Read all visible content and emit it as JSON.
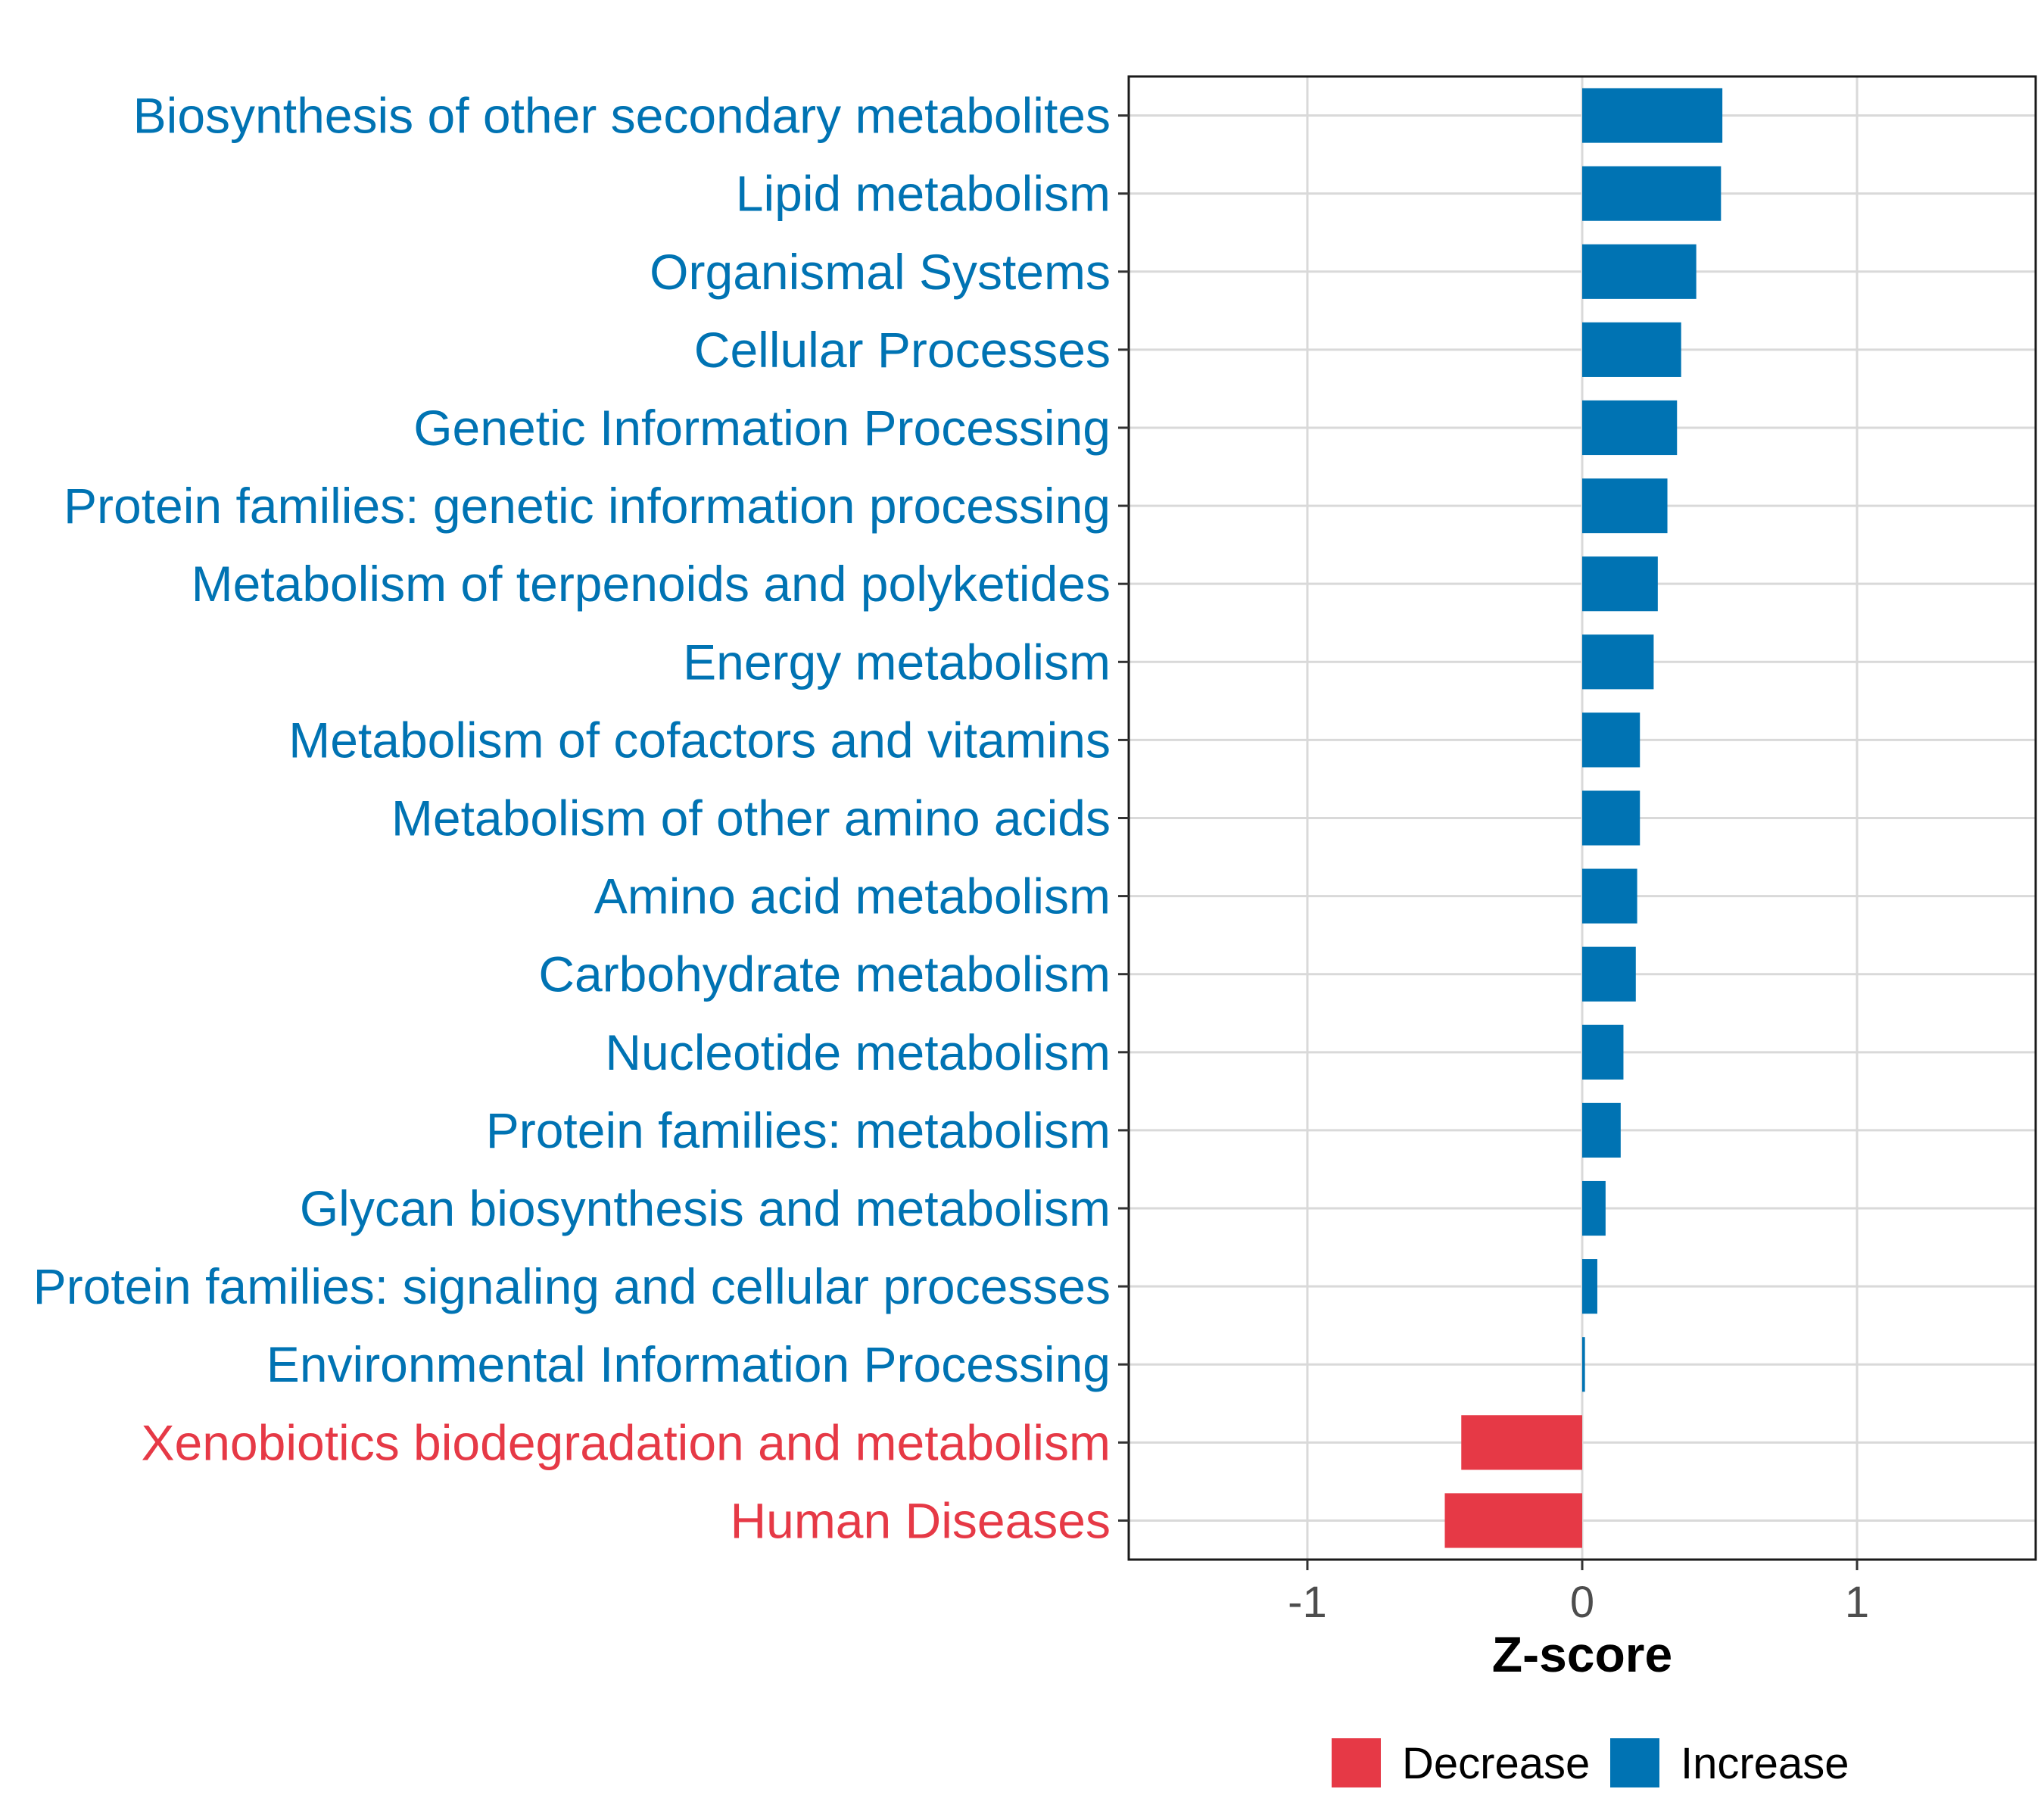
{
  "chart_data": {
    "type": "bar",
    "orientation": "horizontal",
    "title": "",
    "xlabel": "Z-score",
    "ylabel": "",
    "xlim": [
      -1.65,
      1.65
    ],
    "xticks": [
      -1,
      0,
      1
    ],
    "xtick_labels": [
      "-1",
      "0",
      "1"
    ],
    "grid": true,
    "legend_position": "bottom",
    "colors": {
      "Decrease": "#e63946",
      "Increase": "#0073b3"
    },
    "legend": [
      {
        "label": "Decrease",
        "color": "#e63946"
      },
      {
        "label": "Increase",
        "color": "#0073b3"
      }
    ],
    "categories": [
      "Biosynthesis of other secondary metabolites",
      "Lipid metabolism",
      "Organismal Systems",
      "Cellular Processes",
      "Genetic Information Processing",
      "Protein families: genetic information processing",
      "Metabolism of terpenoids and polyketides",
      "Energy metabolism",
      "Metabolism of cofactors and vitamins",
      "Metabolism of other amino acids",
      "Amino acid metabolism",
      "Carbohydrate metabolism",
      "Nucleotide metabolism",
      "Protein families: metabolism",
      "Glycan biosynthesis and metabolism",
      "Protein families: signaling and cellular processes",
      "Environmental Information Processing",
      "Xenobiotics biodegradation and metabolism",
      "Human Diseases"
    ],
    "values": [
      0.51,
      0.505,
      0.415,
      0.36,
      0.345,
      0.31,
      0.275,
      0.26,
      0.21,
      0.21,
      0.2,
      0.195,
      0.15,
      0.14,
      0.085,
      0.055,
      0.01,
      -0.44,
      -0.5
    ],
    "groups": [
      "Increase",
      "Increase",
      "Increase",
      "Increase",
      "Increase",
      "Increase",
      "Increase",
      "Increase",
      "Increase",
      "Increase",
      "Increase",
      "Increase",
      "Increase",
      "Increase",
      "Increase",
      "Increase",
      "Increase",
      "Decrease",
      "Decrease"
    ]
  }
}
